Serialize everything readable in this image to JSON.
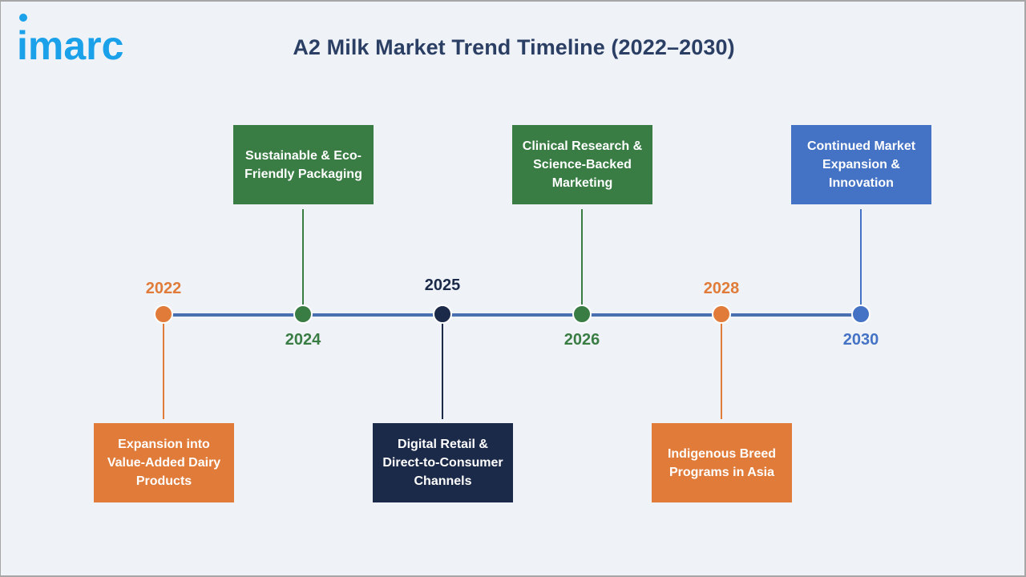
{
  "brand": {
    "logo_text": "imarc",
    "logo_color": "#1ba1e9"
  },
  "title": "A2 Milk Market Trend Timeline (2022–2030)",
  "colors": {
    "background": "#eff3f8",
    "title": "#2b3e64",
    "axis": "#4a6fb0",
    "orange": "#e07b39",
    "green": "#3a7d44",
    "navy": "#1c2a4a",
    "blue": "#4472c4"
  },
  "milestones": [
    {
      "year": "2022",
      "label": "Expansion into Value-Added Dairy Products",
      "color": "#e07b39",
      "year_color": "#e07b39",
      "box_position": "below",
      "year_position": "above"
    },
    {
      "year": "2024",
      "label": "Sustainable & Eco-Friendly Packaging",
      "color": "#3a7d44",
      "year_color": "#3a7d44",
      "box_position": "above",
      "year_position": "below"
    },
    {
      "year": "2025",
      "label": "Digital Retail & Direct-to-Consumer Channels",
      "color": "#1c2a4a",
      "year_color": "#1c2a4a",
      "box_position": "below",
      "year_position": "above"
    },
    {
      "year": "2026",
      "label": "Clinical Research & Science-Backed Marketing",
      "color": "#3a7d44",
      "year_color": "#3a7d44",
      "box_position": "above",
      "year_position": "below"
    },
    {
      "year": "2028",
      "label": "Indigenous Breed Programs in Asia",
      "color": "#e07b39",
      "year_color": "#e07b39",
      "box_position": "below",
      "year_position": "above"
    },
    {
      "year": "2030",
      "label": "Continued Market Expansion & Innovation",
      "color": "#4472c4",
      "year_color": "#4472c4",
      "box_position": "above",
      "year_position": "below"
    }
  ]
}
